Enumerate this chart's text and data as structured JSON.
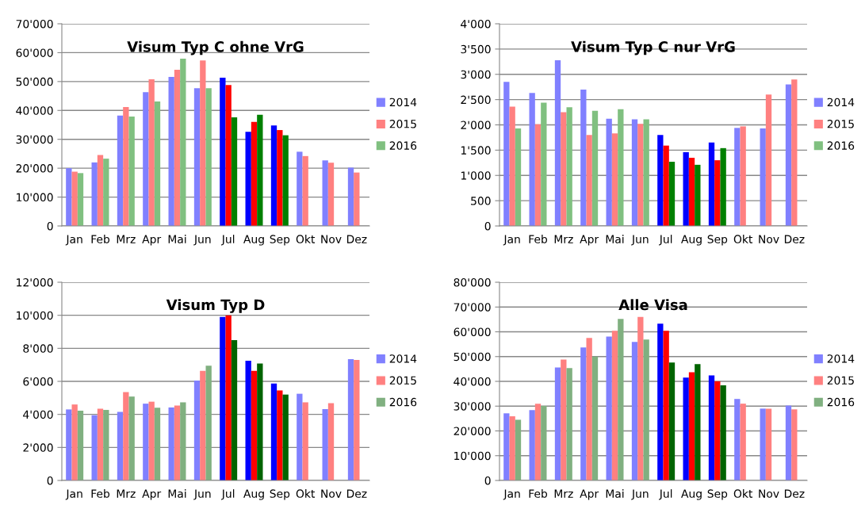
{
  "chart_data": [
    {
      "type": "bar",
      "title": "Visum Typ C ohne VrG",
      "categories": [
        "Jan",
        "Feb",
        "Mrz",
        "Apr",
        "Mai",
        "Jun",
        "Jul",
        "Aug",
        "Sep",
        "Okt",
        "Nov",
        "Dez"
      ],
      "ylim": [
        0,
        70000
      ],
      "yticks": [
        0,
        {
          "value": 10000,
          "label": "10'000"
        },
        {
          "value": 20000,
          "label": "20'000"
        },
        {
          "value": 30000,
          "label": "30'000"
        },
        {
          "value": 40000,
          "label": "40'000"
        },
        {
          "value": 50000,
          "label": "50'000"
        },
        {
          "value": 60000,
          "label": "60'000"
        },
        {
          "value": 70000,
          "label": "70'000"
        }
      ],
      "grid": "y",
      "legend": "right",
      "series": [
        {
          "name": "2014",
          "color": "#8080ff",
          "colors": [
            "#8080ff",
            "#8080ff",
            "#8080ff",
            "#8080ff",
            "#8080ff",
            "#8080ff",
            "#0000ff",
            "#0000ff",
            "#0000ff",
            "#8080ff",
            "#8080ff",
            "#8080ff"
          ],
          "values": [
            20000,
            22000,
            38200,
            46300,
            51600,
            47700,
            51300,
            32600,
            34800,
            25700,
            22700,
            20200
          ]
        },
        {
          "name": "2015",
          "color": "#ff8080",
          "colors": [
            "#ff8080",
            "#ff8080",
            "#ff8080",
            "#ff8080",
            "#ff8080",
            "#ff8080",
            "#ff0000",
            "#ff0000",
            "#ff0000",
            "#ff8080",
            "#ff8080",
            "#ff8080"
          ],
          "values": [
            18800,
            24600,
            41200,
            50800,
            54100,
            57300,
            48800,
            36000,
            33200,
            24200,
            21900,
            18500
          ]
        },
        {
          "name": "2016",
          "color": "#80c080",
          "colors": [
            "#80c080",
            "#80c080",
            "#80c080",
            "#80c080",
            "#80c080",
            "#80c080",
            "#008000",
            "#008000",
            "#008000",
            "#80c080",
            "#80c080",
            "#80c080"
          ],
          "values": [
            18300,
            23300,
            37900,
            43100,
            57900,
            47700,
            37600,
            38500,
            31400,
            null,
            null,
            null
          ]
        }
      ]
    },
    {
      "type": "bar",
      "title": "Visum Typ C nur VrG",
      "categories": [
        "Jan",
        "Feb",
        "Mrz",
        "Apr",
        "Mai",
        "Jun",
        "Jul",
        "Aug",
        "Sep",
        "Okt",
        "Nov",
        "Dez"
      ],
      "ylim": [
        0,
        4000
      ],
      "yticks": [
        0,
        500,
        {
          "value": 1000,
          "label": "1'000"
        },
        {
          "value": 1500,
          "label": "1'500"
        },
        {
          "value": 2000,
          "label": "2'000"
        },
        {
          "value": 2500,
          "label": "2'500"
        },
        {
          "value": 3000,
          "label": "3'000"
        },
        {
          "value": 3500,
          "label": "3'500"
        },
        {
          "value": 4000,
          "label": "4'000"
        }
      ],
      "grid": "y",
      "legend": "right",
      "series": [
        {
          "name": "2014",
          "color": "#8080ff",
          "colors": [
            "#8080ff",
            "#8080ff",
            "#8080ff",
            "#8080ff",
            "#8080ff",
            "#8080ff",
            "#0000ff",
            "#0000ff",
            "#0000ff",
            "#8080ff",
            "#8080ff",
            "#8080ff"
          ],
          "values": [
            2850,
            2630,
            3280,
            2700,
            2120,
            2110,
            1800,
            1460,
            1650,
            1940,
            1930,
            2800
          ]
        },
        {
          "name": "2015",
          "color": "#ff8080",
          "colors": [
            "#ff8080",
            "#ff8080",
            "#ff8080",
            "#ff8080",
            "#ff8080",
            "#ff8080",
            "#ff0000",
            "#ff0000",
            "#ff0000",
            "#ff8080",
            "#ff8080",
            "#ff8080"
          ],
          "values": [
            2360,
            2010,
            2250,
            1800,
            1830,
            2020,
            1590,
            1350,
            1300,
            1970,
            2600,
            2900
          ]
        },
        {
          "name": "2016",
          "color": "#80c080",
          "colors": [
            "#80c080",
            "#80c080",
            "#80c080",
            "#80c080",
            "#80c080",
            "#80c080",
            "#008000",
            "#008000",
            "#008000",
            "#80c080",
            "#80c080",
            "#80c080"
          ],
          "values": [
            1930,
            2440,
            2350,
            2280,
            2310,
            2110,
            1270,
            1210,
            1540,
            null,
            null,
            null
          ]
        }
      ]
    },
    {
      "type": "bar",
      "title": "Visum Typ D",
      "categories": [
        "Jan",
        "Feb",
        "Mrz",
        "Apr",
        "Mai",
        "Jun",
        "Jul",
        "Aug",
        "Sep",
        "Okt",
        "Nov",
        "Dez"
      ],
      "ylim": [
        0,
        12000
      ],
      "yticks": [
        0,
        {
          "value": 2000,
          "label": "2'000"
        },
        {
          "value": 4000,
          "label": "4'000"
        },
        {
          "value": 6000,
          "label": "6'000"
        },
        {
          "value": 8000,
          "label": "8'000"
        },
        {
          "value": 10000,
          "label": "10'000"
        },
        {
          "value": 12000,
          "label": "12'000"
        }
      ],
      "grid": "y",
      "legend": "right",
      "series": [
        {
          "name": "2014",
          "color": "#8080ff",
          "colors": [
            "#8080ff",
            "#8080ff",
            "#8080ff",
            "#8080ff",
            "#8080ff",
            "#8080ff",
            "#0000ff",
            "#0000ff",
            "#0000ff",
            "#8080ff",
            "#8080ff",
            "#8080ff"
          ],
          "values": [
            4300,
            3950,
            4150,
            4650,
            4420,
            6050,
            9900,
            7250,
            5870,
            5250,
            4320,
            7350
          ]
        },
        {
          "name": "2015",
          "color": "#ff8080",
          "colors": [
            "#ff8080",
            "#ff8080",
            "#ff8080",
            "#ff8080",
            "#ff8080",
            "#ff8080",
            "#ff0000",
            "#ff0000",
            "#ff0000",
            "#ff8080",
            "#ff8080",
            "#ff8080"
          ],
          "values": [
            4600,
            4350,
            5350,
            4770,
            4530,
            6630,
            10000,
            6630,
            5450,
            4730,
            4680,
            7300
          ]
        },
        {
          "name": "2016",
          "color": "#80b080",
          "colors": [
            "#80b080",
            "#80b080",
            "#80b080",
            "#80b080",
            "#80b080",
            "#80b080",
            "#006400",
            "#006400",
            "#006400",
            "#80b080",
            "#80b080",
            "#80b080"
          ],
          "values": [
            4230,
            4270,
            5080,
            4400,
            4730,
            6950,
            8500,
            7080,
            5200,
            null,
            null,
            null
          ]
        }
      ]
    },
    {
      "type": "bar",
      "title": "Alle Visa",
      "categories": [
        "Jan",
        "Feb",
        "Mrz",
        "Apr",
        "Mai",
        "Jun",
        "Jul",
        "Aug",
        "Sep",
        "Okt",
        "Nov",
        "Dez"
      ],
      "ylim": [
        0,
        80000
      ],
      "yticks": [
        0,
        {
          "value": 10000,
          "label": "10'000"
        },
        {
          "value": 20000,
          "label": "20'000"
        },
        {
          "value": 30000,
          "label": "30'000"
        },
        {
          "value": 40000,
          "label": "40'000"
        },
        {
          "value": 50000,
          "label": "50'000"
        },
        {
          "value": 60000,
          "label": "60'000"
        },
        {
          "value": 70000,
          "label": "70'000"
        },
        {
          "value": 80000,
          "label": "80'000"
        }
      ],
      "grid": "y",
      "legend": "right",
      "series": [
        {
          "name": "2014",
          "color": "#8080ff",
          "colors": [
            "#8080ff",
            "#8080ff",
            "#8080ff",
            "#8080ff",
            "#8080ff",
            "#8080ff",
            "#0000ff",
            "#0000ff",
            "#0000ff",
            "#8080ff",
            "#8080ff",
            "#8080ff"
          ],
          "values": [
            27100,
            28400,
            45600,
            53700,
            58100,
            55900,
            63300,
            41500,
            42400,
            32900,
            29000,
            30200
          ]
        },
        {
          "name": "2015",
          "color": "#ff8080",
          "colors": [
            "#ff8080",
            "#ff8080",
            "#ff8080",
            "#ff8080",
            "#ff8080",
            "#ff8080",
            "#ff0000",
            "#ff0000",
            "#ff0000",
            "#ff8080",
            "#ff8080",
            "#ff8080"
          ],
          "values": [
            25900,
            31000,
            48800,
            57500,
            60400,
            66000,
            60400,
            43700,
            40000,
            31000,
            29000,
            28700
          ]
        },
        {
          "name": "2016",
          "color": "#80b080",
          "colors": [
            "#80b080",
            "#80b080",
            "#80b080",
            "#80b080",
            "#80b080",
            "#80b080",
            "#006400",
            "#006400",
            "#006400",
            "#80b080",
            "#80b080",
            "#80b080"
          ],
          "values": [
            24500,
            30100,
            45400,
            50000,
            65200,
            56900,
            47600,
            47000,
            38400,
            null,
            null,
            null
          ]
        }
      ]
    }
  ]
}
